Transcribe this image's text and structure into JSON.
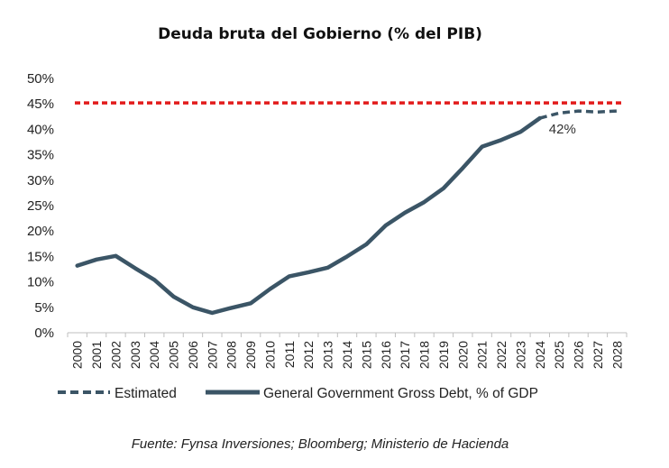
{
  "chart_data": {
    "type": "line",
    "title": "Deuda bruta del Gobierno (% del PIB)",
    "xlabel": "",
    "ylabel": "",
    "ylim": [
      0,
      50
    ],
    "y_ticks": [
      "0%",
      "5%",
      "10%",
      "15%",
      "20%",
      "25%",
      "30%",
      "35%",
      "40%",
      "45%",
      "50%"
    ],
    "x": [
      "2000",
      "2001",
      "2002",
      "2003",
      "2004",
      "2005",
      "2006",
      "2007",
      "2008",
      "2009",
      "2010",
      "2011",
      "2012",
      "2013",
      "2014",
      "2015",
      "2016",
      "2017",
      "2018",
      "2019",
      "2020",
      "2021",
      "2022",
      "2023",
      "2024",
      "2025",
      "2026",
      "2027",
      "2028"
    ],
    "series": [
      {
        "name": "General Government Gross Debt, % of GDP",
        "style": "solid",
        "color": "#3b5566",
        "x": [
          "2000",
          "2001",
          "2002",
          "2003",
          "2004",
          "2005",
          "2006",
          "2007",
          "2008",
          "2009",
          "2010",
          "2011",
          "2012",
          "2013",
          "2014",
          "2015",
          "2016",
          "2017",
          "2018",
          "2019",
          "2020",
          "2021",
          "2022",
          "2023",
          "2024"
        ],
        "values": [
          13.2,
          14.4,
          15.1,
          12.7,
          10.4,
          7.1,
          5.0,
          3.9,
          4.9,
          5.8,
          8.6,
          11.1,
          11.9,
          12.8,
          15.0,
          17.4,
          21.1,
          23.6,
          25.7,
          28.4,
          32.4,
          36.6,
          37.9,
          39.5,
          42.2
        ]
      },
      {
        "name": "Estimated",
        "style": "dashed",
        "color": "#3b5566",
        "x": [
          "2024",
          "2025",
          "2026",
          "2027",
          "2028"
        ],
        "values": [
          42.2,
          43.2,
          43.6,
          43.4,
          43.6
        ]
      },
      {
        "name": "",
        "style": "dotted-reference",
        "color": "#e21b1b",
        "value": 45.2
      }
    ],
    "annotation": {
      "text": "42%",
      "x": "2024"
    },
    "legend_placement": "bottom",
    "grid": false
  },
  "legend": {
    "estimated": "Estimated",
    "gross_debt": "General Government Gross Debt, % of GDP"
  },
  "source": "Fuente: Fynsa Inversiones; Bloomberg; Ministerio de Hacienda"
}
